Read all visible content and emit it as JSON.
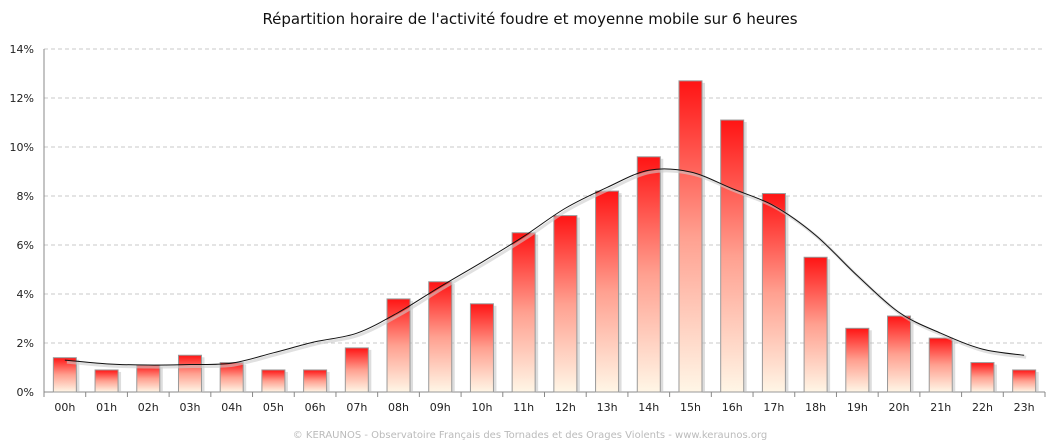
{
  "chart_data": {
    "type": "bar",
    "title": "Répartition horaire de l'activité foudre et moyenne mobile sur 6 heures",
    "xlabel": "",
    "ylabel": "",
    "ylim": [
      0,
      14
    ],
    "y_ticks": [
      "0%",
      "2%",
      "4%",
      "6%",
      "8%",
      "10%",
      "12%",
      "14%"
    ],
    "grid": true,
    "categories": [
      "00h",
      "01h",
      "02h",
      "03h",
      "04h",
      "05h",
      "06h",
      "07h",
      "08h",
      "09h",
      "10h",
      "11h",
      "12h",
      "13h",
      "14h",
      "15h",
      "16h",
      "17h",
      "18h",
      "19h",
      "20h",
      "21h",
      "22h",
      "23h"
    ],
    "series": [
      {
        "type": "bar",
        "color": "#ff1a1a",
        "values": [
          1.4,
          0.9,
          1.1,
          1.5,
          1.2,
          0.9,
          0.9,
          1.8,
          3.8,
          4.5,
          3.6,
          6.5,
          7.2,
          8.2,
          9.6,
          12.7,
          11.1,
          8.1,
          5.5,
          2.6,
          3.1,
          2.2,
          1.2,
          0.9
        ]
      },
      {
        "type": "line",
        "color": "#111111",
        "values": [
          1.3,
          1.15,
          1.1,
          1.12,
          1.18,
          1.6,
          2.05,
          2.4,
          3.25,
          4.3,
          5.3,
          6.35,
          7.5,
          8.35,
          9.05,
          8.98,
          8.3,
          7.6,
          6.4,
          4.75,
          3.25,
          2.4,
          1.75,
          1.5
        ]
      }
    ]
  },
  "footer": "© KERAUNOS - Observatoire Français des Tornades et des Orages Violents - www.keraunos.org"
}
